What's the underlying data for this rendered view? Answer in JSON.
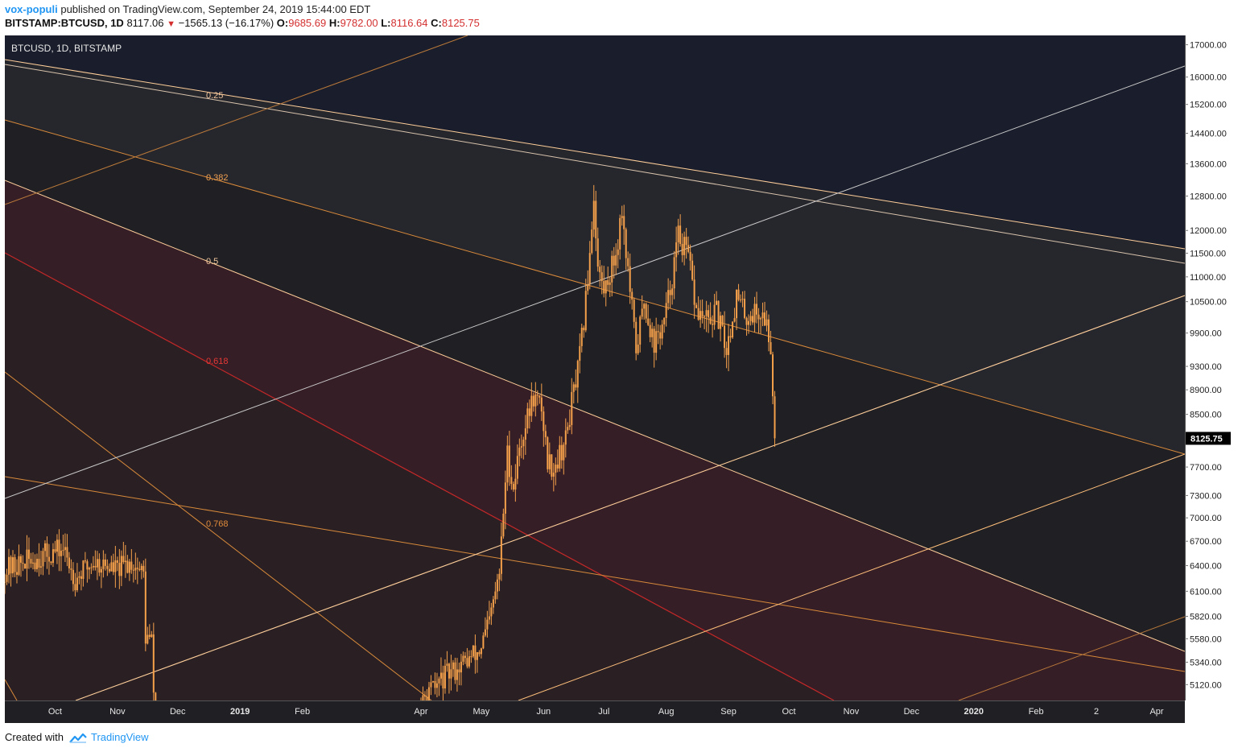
{
  "header": {
    "author": "vox-populi",
    "published_text": "published on TradingView.com, September 24, 2019 15:44:00 EDT",
    "symbol_interval": "BITSTAMP:BTCUSD, 1D",
    "last_price": "8117.06",
    "change": "−1565.13 (−16.17%)",
    "open_label": "O:",
    "open": "9685.69",
    "high_label": "H:",
    "high": "9782.00",
    "low_label": "L:",
    "low": "8116.64",
    "close_label": "C:",
    "close": "8125.75"
  },
  "footer": {
    "created_with": "Created with",
    "brand": "TradingView"
  },
  "colors": {
    "background": "#1f1f24",
    "candle": "#f5a04a",
    "fib_orange": "#d98a3a",
    "fib_red": "#c62828",
    "channel_white": "#c9c9c9",
    "channel_peach": "#ffcf9a",
    "price_label_bg": "#000000",
    "red_zone": "#3b1f27",
    "top_zone": "#1a1d2b"
  },
  "chart_data": {
    "type": "candlestick",
    "legend": "BTCUSD, 1D, BITSTAMP",
    "y_scale": "log",
    "ylim": [
      4970,
      17300
    ],
    "y_ticks": [
      "17000.00",
      "16000.00",
      "15200.00",
      "14400.00",
      "13600.00",
      "12800.00",
      "12000.00",
      "11500.00",
      "11000.00",
      "10500.00",
      "9900.00",
      "9300.00",
      "8900.00",
      "8500.00",
      "7700.00",
      "7300.00",
      "7000.00",
      "6700.00",
      "6400.00",
      "6100.00",
      "5820.00",
      "5580.00",
      "5340.00",
      "5120.00"
    ],
    "x_ticks": [
      "Oct",
      "Nov",
      "Dec",
      "2019",
      "Feb",
      "Apr",
      "May",
      "Jun",
      "Jul",
      "Aug",
      "Sep",
      "Oct",
      "Nov",
      "Dec",
      "2020",
      "Feb",
      "2",
      "Apr"
    ],
    "x_range": [
      "2018-09-06",
      "2020-04-15"
    ],
    "last_price_label": "8125.75",
    "fib_labels": [
      "0.25",
      "0.382",
      "0.5",
      "0.618",
      "0.768"
    ],
    "series": [
      {
        "segments": [
          {
            "start": "2018-09-06",
            "end": "2018-11-21",
            "points": [
              [
                "2018-09-06",
                6350
              ],
              [
                "2018-09-20",
                6480
              ],
              [
                "2018-10-05",
                6600
              ],
              [
                "2018-10-11",
                6250
              ],
              [
                "2018-10-20",
                6450
              ],
              [
                "2018-11-01",
                6350
              ],
              [
                "2018-11-08",
                6450
              ],
              [
                "2018-11-14",
                6300
              ],
              [
                "2018-11-15",
                5600
              ],
              [
                "2018-11-18",
                5550
              ],
              [
                "2018-11-20",
                4600
              ]
            ]
          },
          {
            "start": "2019-04-01",
            "end": "2019-09-24",
            "points": [
              [
                "2019-04-01",
                4900
              ],
              [
                "2019-04-10",
                5150
              ],
              [
                "2019-04-20",
                5300
              ],
              [
                "2019-04-30",
                5450
              ],
              [
                "2019-05-05",
                5750
              ],
              [
                "2019-05-10",
                6300
              ],
              [
                "2019-05-13",
                7500
              ],
              [
                "2019-05-14",
                7900
              ],
              [
                "2019-05-17",
                7400
              ],
              [
                "2019-05-20",
                8000
              ],
              [
                "2019-05-27",
                8800
              ],
              [
                "2019-05-31",
                8600
              ],
              [
                "2019-06-03",
                7800
              ],
              [
                "2019-06-06",
                7700
              ],
              [
                "2019-06-12",
                8100
              ],
              [
                "2019-06-15",
                8700
              ],
              [
                "2019-06-18",
                9200
              ],
              [
                "2019-06-21",
                10100
              ],
              [
                "2019-06-23",
                11000
              ],
              [
                "2019-06-26",
                12800
              ],
              [
                "2019-06-28",
                11200
              ],
              [
                "2019-07-01",
                10700
              ],
              [
                "2019-07-07",
                11500
              ],
              [
                "2019-07-10",
                12500
              ],
              [
                "2019-07-13",
                11100
              ],
              [
                "2019-07-17",
                9600
              ],
              [
                "2019-07-21",
                10500
              ],
              [
                "2019-07-26",
                9700
              ],
              [
                "2019-07-31",
                10100
              ],
              [
                "2019-08-04",
                11000
              ],
              [
                "2019-08-07",
                11900
              ],
              [
                "2019-08-12",
                11400
              ],
              [
                "2019-08-16",
                10300
              ],
              [
                "2019-08-22",
                10100
              ],
              [
                "2019-08-26",
                10300
              ],
              [
                "2019-08-31",
                9600
              ],
              [
                "2019-09-05",
                10600
              ],
              [
                "2019-09-10",
                10200
              ],
              [
                "2019-09-14",
                10300
              ],
              [
                "2019-09-19",
                10200
              ],
              [
                "2019-09-22",
                9700
              ],
              [
                "2019-09-24",
                8125
              ]
            ]
          }
        ]
      }
    ]
  }
}
